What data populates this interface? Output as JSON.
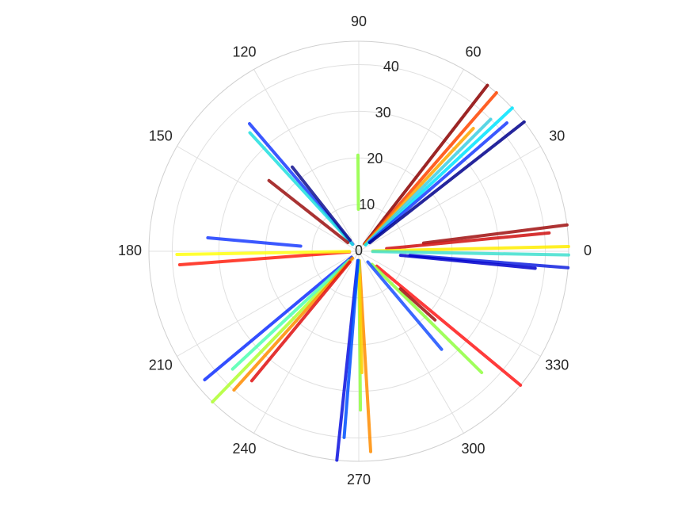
{
  "chart_data": {
    "type": "polar",
    "rlim": [
      0,
      45
    ],
    "rticks": [
      0,
      10,
      20,
      30,
      40
    ],
    "rtick_angle": 80,
    "thetaticks": [
      0,
      30,
      60,
      90,
      120,
      150,
      180,
      210,
      240,
      270,
      300,
      330
    ],
    "grid": true,
    "series": [
      {
        "color": "#8b0000",
        "theta": 52.2,
        "r": [
          2,
          45
        ]
      },
      {
        "color": "#ff4500",
        "theta": 49,
        "r": [
          2,
          45
        ]
      },
      {
        "color": "#ffa500",
        "theta": 47,
        "r": [
          2,
          36
        ]
      },
      {
        "color": "#00e5ff",
        "theta": 43,
        "r": [
          2,
          45
        ]
      },
      {
        "color": "#3fd0e0",
        "theta": 45,
        "r": [
          3,
          40
        ]
      },
      {
        "color": "#1a3cff",
        "theta": 40.9,
        "r": [
          3,
          42
        ]
      },
      {
        "color": "#00008b",
        "theta": 38,
        "r": [
          3,
          45
        ]
      },
      {
        "color": "#a01010",
        "theta": 7.2,
        "r": [
          14,
          45
        ]
      },
      {
        "color": "#d01010",
        "theta": 5.5,
        "r": [
          6,
          41
        ]
      },
      {
        "color": "#ffee00",
        "theta": 1.3,
        "r": [
          3,
          45
        ]
      },
      {
        "color": "#40e0d0",
        "theta": -1,
        "r": [
          3,
          45
        ]
      },
      {
        "color": "#1020e0",
        "theta": -4.5,
        "r": [
          11,
          45
        ]
      },
      {
        "color": "#0000cd",
        "theta": -5.5,
        "r": [
          9,
          38
        ]
      },
      {
        "color": "#ff1a1a",
        "theta": 320.4,
        "r": [
          5,
          45
        ]
      },
      {
        "color": "#90ff40",
        "theta": 315.4,
        "r": [
          4,
          37
        ]
      },
      {
        "color": "#1a50ff",
        "theta": 310.2,
        "r": [
          3,
          27.5
        ]
      },
      {
        "color": "#a01010",
        "theta": 318,
        "r": [
          12,
          22
        ]
      },
      {
        "color": "#ff8c00",
        "theta": 273.4,
        "r": [
          2,
          43
        ]
      },
      {
        "color": "#90ff40",
        "theta": 270.6,
        "r": [
          2,
          34
        ]
      },
      {
        "color": "#ffd000",
        "theta": 271.5,
        "r": [
          5,
          26
        ]
      },
      {
        "color": "#0a10e0",
        "theta": 264,
        "r": [
          2,
          45
        ]
      },
      {
        "color": "#0050ff",
        "theta": 265.5,
        "r": [
          2,
          40
        ]
      },
      {
        "color": "#b0ff30",
        "theta": 225.8,
        "r": [
          2,
          45
        ]
      },
      {
        "color": "#1030ff",
        "theta": 219.8,
        "r": [
          2,
          43
        ]
      },
      {
        "color": "#50ffb0",
        "theta": 223,
        "r": [
          3,
          37
        ]
      },
      {
        "color": "#ff8c00",
        "theta": 228,
        "r": [
          2,
          40
        ]
      },
      {
        "color": "#e01010",
        "theta": 230.4,
        "r": [
          3,
          36
        ]
      },
      {
        "color": "#ff2010",
        "theta": 184.3,
        "r": [
          2,
          38.5
        ]
      },
      {
        "color": "#ffff10",
        "theta": 181,
        "r": [
          2,
          39
        ]
      },
      {
        "color": "#1a3cff",
        "theta": 174.9,
        "r": [
          12.5,
          32.5
        ]
      },
      {
        "color": "#1a3cff",
        "theta": 130.6,
        "r": [
          2,
          36
        ]
      },
      {
        "color": "#20e0e0",
        "theta": 132.6,
        "r": [
          2,
          34.5
        ]
      },
      {
        "color": "#9b1010",
        "theta": 141.8,
        "r": [
          3,
          24.5
        ]
      },
      {
        "color": "#101090",
        "theta": 128.3,
        "r": [
          3,
          23
        ]
      },
      {
        "color": "#90ff40",
        "theta": 90.5,
        "r": [
          9,
          20.6
        ]
      }
    ]
  }
}
